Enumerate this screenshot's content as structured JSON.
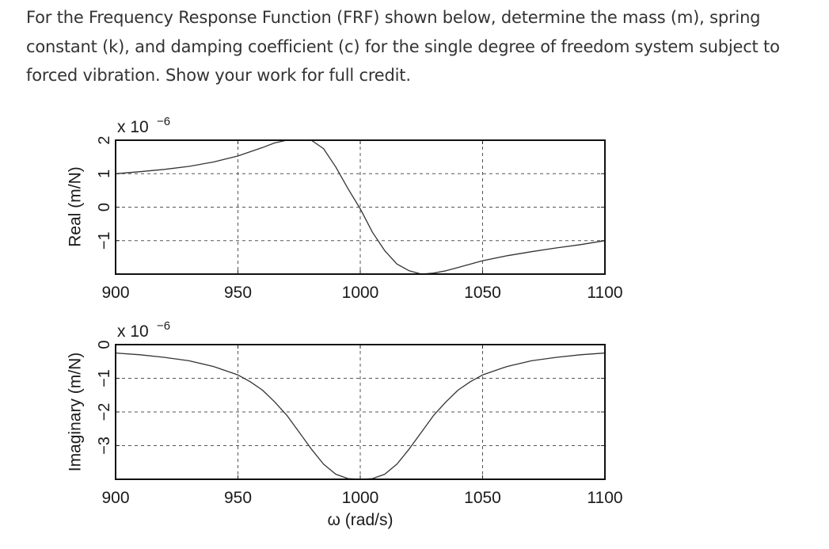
{
  "question": {
    "text": "For the Frequency Response Function (FRF) shown below, determine the mass (m), spring constant (k), and damping coefficient (c) for the single degree of freedom system subject to forced vibration. Show your work for full credit."
  },
  "chart_data": [
    {
      "type": "line",
      "name": "real-part",
      "ylabel": "Real (m/N)",
      "scale_label": "x 10",
      "scale_exponent": "−6",
      "xlim": [
        900,
        1100
      ],
      "ylim": [
        -2,
        2
      ],
      "xticks": [
        900,
        950,
        1000,
        1050,
        1100
      ],
      "xtick_labels": [
        "900",
        "950",
        "1000",
        "1050",
        "1100"
      ],
      "yticks": [
        2,
        1,
        0,
        -1
      ],
      "ytick_labels": [
        "2",
        "1",
        "0",
        "−1"
      ],
      "grid": true,
      "grid_style": "dashed",
      "line_color": "#333333",
      "x": [
        900,
        910,
        920,
        930,
        940,
        950,
        960,
        965,
        970,
        975,
        980,
        985,
        990,
        995,
        1000,
        1005,
        1010,
        1015,
        1020,
        1025,
        1030,
        1035,
        1040,
        1050,
        1060,
        1070,
        1080,
        1090,
        1100
      ],
      "y": [
        1.0,
        1.06,
        1.13,
        1.22,
        1.35,
        1.53,
        1.78,
        1.92,
        2.0,
        2.0,
        2.0,
        1.75,
        1.2,
        0.55,
        -0.05,
        -0.75,
        -1.3,
        -1.7,
        -1.9,
        -2.0,
        -1.97,
        -1.9,
        -1.8,
        -1.6,
        -1.45,
        -1.33,
        -1.22,
        -1.12,
        -1.0
      ]
    },
    {
      "type": "line",
      "name": "imaginary-part",
      "ylabel": "Imaginary (m/N)",
      "xlabel": "ω (rad/s)",
      "scale_label": "x 10",
      "scale_exponent": "−6",
      "xlim": [
        900,
        1100
      ],
      "ylim": [
        -4,
        0
      ],
      "xticks": [
        900,
        950,
        1000,
        1050,
        1100
      ],
      "xtick_labels": [
        "900",
        "950",
        "1000",
        "1050",
        "1100"
      ],
      "yticks": [
        0,
        -1,
        -2,
        -3
      ],
      "ytick_labels": [
        "0",
        "−1",
        "−2",
        "−3"
      ],
      "grid": true,
      "grid_style": "dashed",
      "line_color": "#333333",
      "x": [
        900,
        910,
        920,
        930,
        940,
        950,
        955,
        960,
        965,
        970,
        975,
        980,
        985,
        990,
        995,
        1000,
        1005,
        1010,
        1015,
        1020,
        1025,
        1030,
        1035,
        1040,
        1045,
        1050,
        1060,
        1070,
        1080,
        1090,
        1100
      ],
      "y": [
        -0.25,
        -0.3,
        -0.38,
        -0.48,
        -0.65,
        -0.9,
        -1.1,
        -1.35,
        -1.7,
        -2.1,
        -2.6,
        -3.1,
        -3.55,
        -3.85,
        -3.98,
        -4.0,
        -3.98,
        -3.85,
        -3.55,
        -3.1,
        -2.6,
        -2.1,
        -1.7,
        -1.35,
        -1.1,
        -0.9,
        -0.65,
        -0.48,
        -0.38,
        -0.3,
        -0.25
      ]
    }
  ]
}
